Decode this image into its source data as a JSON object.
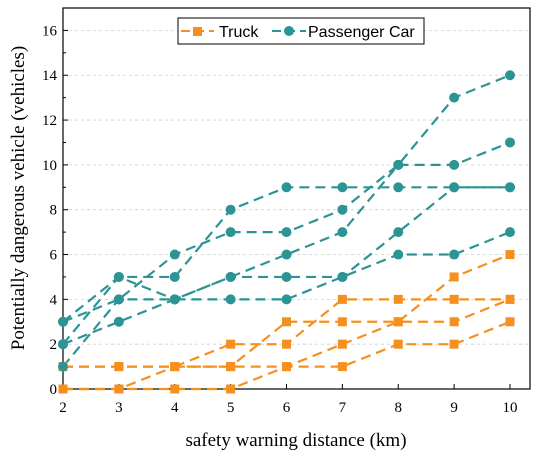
{
  "chart_data": {
    "type": "line",
    "xlabel": "safety warning distance (km)",
    "ylabel": "Potentially dangerous vehicle (vehicles)",
    "x": [
      2,
      3,
      4,
      5,
      6,
      7,
      8,
      9,
      10
    ],
    "xlim": [
      2,
      10
    ],
    "ylim": [
      0,
      17
    ],
    "yticks": [
      0,
      2,
      4,
      6,
      8,
      10,
      12,
      14,
      16
    ],
    "grid": true,
    "legend_position": "top-right",
    "groups": [
      {
        "name": "Truck",
        "color": "#F5901E",
        "marker": "square",
        "series": [
          [
            1,
            1,
            1,
            2,
            2,
            4,
            4,
            4,
            4
          ],
          [
            1,
            1,
            1,
            1,
            3,
            3,
            3,
            5,
            6
          ],
          [
            0,
            0,
            1,
            1,
            1,
            2,
            3,
            3,
            4
          ],
          [
            0,
            0,
            0,
            0,
            1,
            1,
            2,
            2,
            3
          ]
        ]
      },
      {
        "name": "Passenger Car",
        "color": "#2C9494",
        "marker": "circle",
        "series": [
          [
            3,
            4,
            6,
            7,
            7,
            8,
            10,
            13,
            14
          ],
          [
            3,
            5,
            5,
            8,
            9,
            9,
            9,
            9,
            9
          ],
          [
            2,
            5,
            4,
            5,
            6,
            7,
            10,
            10,
            11
          ],
          [
            2,
            3,
            4,
            5,
            5,
            5,
            7,
            9,
            9
          ],
          [
            1,
            4,
            4,
            4,
            4,
            5,
            6,
            6,
            7
          ]
        ]
      }
    ]
  }
}
